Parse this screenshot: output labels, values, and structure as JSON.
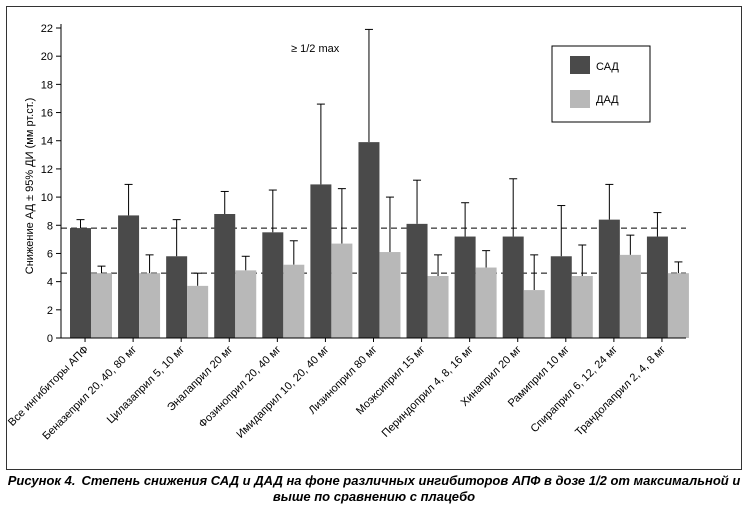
{
  "chart_data": {
    "type": "bar",
    "ylabel": "Снижение АД ± 95% ДИ (мм рт.ст.)",
    "ylim": [
      0,
      22
    ],
    "yticks": [
      0,
      2,
      4,
      6,
      8,
      10,
      12,
      14,
      16,
      18,
      20,
      22
    ],
    "annotation": "≥ 1/2 max",
    "legend_position": "top-right",
    "reference_lines": [
      7.8,
      4.6
    ],
    "categories": [
      "Все ингибиторы АПФ",
      "Беназеприл 20, 40, 80 мг",
      "Цилазаприл 5, 10 мг",
      "Эналаприл 20 мг",
      "Фозиноприл 20, 40 мг",
      "Имидаприл 10, 20, 40 мг",
      "Лизиноприл 80 мг",
      "Моэксиприл 15 мг",
      "Периндоприл 4, 8, 16 мг",
      "Хинаприл 20 мг",
      "Рамиприл 10 мг",
      "Спираприл 6, 12, 24 мг",
      "Трандолаприл 2, 4, 8 мг"
    ],
    "series": [
      {
        "name": "САД",
        "color": "#4a4a4a",
        "values": [
          7.8,
          8.7,
          5.8,
          8.8,
          7.5,
          10.9,
          13.9,
          8.1,
          7.2,
          7.2,
          5.8,
          8.4,
          7.2
        ],
        "err_upper": [
          8.4,
          10.9,
          8.4,
          10.4,
          10.5,
          16.6,
          21.9,
          11.2,
          9.6,
          11.3,
          9.4,
          10.9,
          8.9
        ]
      },
      {
        "name": "ДАД",
        "color": "#b8b8b8",
        "values": [
          4.6,
          4.6,
          3.7,
          4.8,
          5.2,
          6.7,
          6.1,
          4.4,
          5.0,
          3.4,
          4.4,
          5.9,
          4.6
        ],
        "err_upper": [
          5.1,
          5.9,
          4.6,
          5.8,
          6.9,
          10.6,
          10.0,
          5.9,
          6.2,
          5.9,
          6.6,
          7.3,
          5.4
        ]
      }
    ]
  },
  "caption": {
    "label": "Рисунок 4.",
    "text": "Степень снижения САД и ДАД на фоне различных ингибиторов АПФ в дозе 1/2 от максимальной и выше по сравнению с плацебо"
  }
}
